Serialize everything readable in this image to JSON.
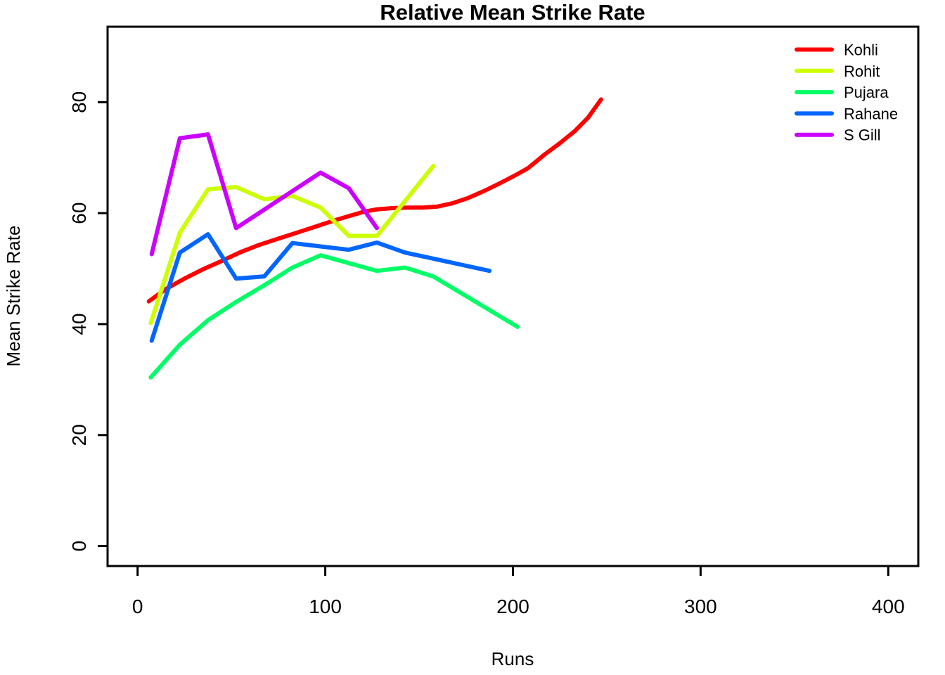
{
  "figure": {
    "title": "Relative Mean Strike Rate",
    "xlabel": "Runs",
    "ylabel": "Mean Strike Rate"
  },
  "chart_data": {
    "type": "line",
    "title": "Relative Mean Strike Rate",
    "xlabel": "Runs",
    "ylabel": "Mean Strike Rate",
    "xlim": [
      0,
      400
    ],
    "ylim": [
      0,
      90
    ],
    "x_ticks": [
      "0",
      "100",
      "200",
      "300",
      "400"
    ],
    "x_tick_values": [
      0,
      100,
      200,
      300,
      400
    ],
    "y_ticks": [
      "0",
      "20",
      "40",
      "60",
      "80"
    ],
    "y_tick_values": [
      0,
      20,
      40,
      60,
      80
    ],
    "grid": false,
    "legend_position": "top-right",
    "axis_color": "#000000",
    "background": "#FFFFFF",
    "line_width": 6,
    "series": [
      {
        "name": "Kohli",
        "color": "#FF0000",
        "points": [
          [
            6,
            44.1
          ],
          [
            15,
            46.3
          ],
          [
            25,
            48.2
          ],
          [
            35,
            49.9
          ],
          [
            45,
            51.4
          ],
          [
            55,
            53.0
          ],
          [
            65,
            54.3
          ],
          [
            75,
            55.4
          ],
          [
            85,
            56.5
          ],
          [
            95,
            57.6
          ],
          [
            105,
            58.7
          ],
          [
            114,
            59.6
          ],
          [
            121,
            60.3
          ],
          [
            128,
            60.7
          ],
          [
            136,
            60.9
          ],
          [
            144,
            61.0
          ],
          [
            152,
            61.0
          ],
          [
            160,
            61.2
          ],
          [
            168,
            61.8
          ],
          [
            176,
            62.7
          ],
          [
            184,
            63.9
          ],
          [
            192,
            65.2
          ],
          [
            200,
            66.6
          ],
          [
            208,
            68.1
          ],
          [
            217,
            70.6
          ],
          [
            225,
            72.6
          ],
          [
            233,
            74.8
          ],
          [
            240,
            77.2
          ],
          [
            247,
            80.5
          ]
        ]
      },
      {
        "name": "Rohit",
        "color": "#CCFF00",
        "points": [
          [
            7,
            40.2
          ],
          [
            22.5,
            56.5
          ],
          [
            37.5,
            64.3
          ],
          [
            52.5,
            64.7
          ],
          [
            67.5,
            62.5
          ],
          [
            82.5,
            63.1
          ],
          [
            97.5,
            61.0
          ],
          [
            112.5,
            55.9
          ],
          [
            127.5,
            55.9
          ],
          [
            157.5,
            68.5
          ]
        ]
      },
      {
        "name": "Pujara",
        "color": "#00FF66",
        "points": [
          [
            7,
            30.4
          ],
          [
            22.5,
            36.3
          ],
          [
            37.5,
            40.7
          ],
          [
            52.5,
            44.0
          ],
          [
            67.5,
            47.0
          ],
          [
            82.5,
            50.2
          ],
          [
            97.5,
            52.4
          ],
          [
            112.5,
            51.0
          ],
          [
            127.5,
            49.6
          ],
          [
            142.5,
            50.2
          ],
          [
            157.5,
            48.6
          ],
          [
            202.5,
            39.5
          ]
        ]
      },
      {
        "name": "Rahane",
        "color": "#0066FF",
        "points": [
          [
            7.5,
            37.0
          ],
          [
            22.5,
            52.9
          ],
          [
            37.5,
            56.2
          ],
          [
            52.5,
            48.2
          ],
          [
            67.5,
            48.6
          ],
          [
            82.5,
            54.6
          ],
          [
            97.5,
            54.0
          ],
          [
            112.5,
            53.4
          ],
          [
            127.5,
            54.7
          ],
          [
            142.5,
            52.9
          ],
          [
            157.5,
            51.8
          ],
          [
            172.5,
            50.7
          ],
          [
            187.5,
            49.6
          ]
        ]
      },
      {
        "name": "S Gill",
        "color": "#CC00FF",
        "points": [
          [
            7.5,
            52.6
          ],
          [
            22.5,
            73.5
          ],
          [
            37.5,
            74.2
          ],
          [
            52.5,
            57.3
          ],
          [
            97.5,
            67.3
          ],
          [
            112.5,
            64.5
          ],
          [
            127.5,
            57.3
          ]
        ]
      }
    ]
  }
}
